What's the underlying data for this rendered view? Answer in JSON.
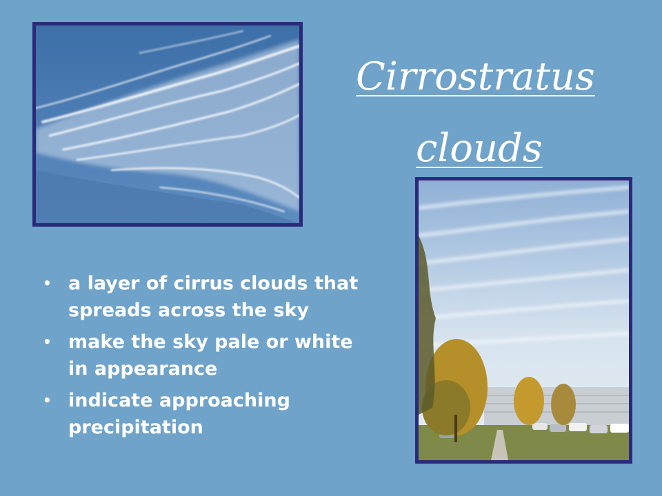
{
  "title": {
    "line1": "Cirrostratus",
    "line2": "clouds"
  },
  "bullets": [
    "a layer of cirrus clouds that spreads across the sky",
    "make the sky pale or white in appearance",
    "indicate approaching precipitation"
  ],
  "bullet_symbol": "•",
  "colors": {
    "background": "#6fa3c9",
    "photo_border": "#2a2a7a",
    "text": "#ffffff"
  }
}
